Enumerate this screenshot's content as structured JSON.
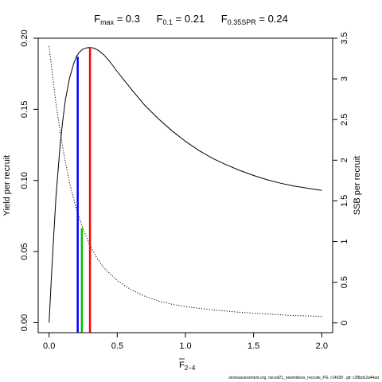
{
  "chart_data": {
    "type": "line",
    "title_parts": [
      {
        "main": "F",
        "sub": "max",
        "value": " = 0.3"
      },
      {
        "main": "F",
        "sub": "0.1",
        "value": " = 0.21"
      },
      {
        "main": "F",
        "sub": "0.35SPR",
        "value": " = 0.24"
      }
    ],
    "xlabel": {
      "main": "F",
      "sub": "2−4",
      "overline": true
    },
    "ylabel_left": "Yield per recruit",
    "ylabel_right": "SSB per recruit",
    "xlim": [
      -0.08,
      2.08
    ],
    "ylim_left": [
      -0.007,
      0.2
    ],
    "ylim_right": [
      -0.12,
      3.5
    ],
    "x_ticks": [
      0,
      0.5,
      1,
      1.5,
      2
    ],
    "x_tick_labels": [
      "0.0",
      "0.5",
      "1.0",
      "1.5",
      "2.0"
    ],
    "y_left_ticks": [
      0,
      0.05,
      0.1,
      0.15,
      0.2
    ],
    "y_left_tick_labels": [
      "0.00",
      "0.05",
      "0.10",
      "0.15",
      "0.20"
    ],
    "y_right_ticks": [
      0,
      0.5,
      1,
      1.5,
      2,
      2.5,
      3,
      3.5
    ],
    "y_right_tick_labels": [
      "0",
      "0.5",
      "1",
      "1.5",
      "2",
      "2.5",
      "3",
      "3.5"
    ],
    "grid": false,
    "series": [
      {
        "axis": "left",
        "style": "solid",
        "color": "#000000",
        "x": [
          0,
          0.02,
          0.05,
          0.08,
          0.1,
          0.12,
          0.15,
          0.18,
          0.2,
          0.22,
          0.25,
          0.28,
          0.3,
          0.33,
          0.36,
          0.4,
          0.45,
          0.5,
          0.6,
          0.7,
          0.8,
          0.9,
          1.0,
          1.1,
          1.2,
          1.3,
          1.4,
          1.5,
          1.6,
          1.7,
          1.8,
          1.9,
          2.0
        ],
        "y": [
          0,
          0.038,
          0.088,
          0.124,
          0.142,
          0.157,
          0.172,
          0.182,
          0.187,
          0.19,
          0.1925,
          0.1933,
          0.1935,
          0.193,
          0.1915,
          0.1885,
          0.183,
          0.1765,
          0.1645,
          0.153,
          0.1435,
          0.135,
          0.1275,
          0.121,
          0.1155,
          0.111,
          0.107,
          0.1035,
          0.1005,
          0.098,
          0.096,
          0.0945,
          0.093
        ]
      },
      {
        "axis": "right",
        "style": "dotted",
        "color": "#000000",
        "x": [
          0,
          0.05,
          0.1,
          0.15,
          0.2,
          0.25,
          0.3,
          0.35,
          0.4,
          0.5,
          0.6,
          0.7,
          0.8,
          0.9,
          1.0,
          1.2,
          1.4,
          1.6,
          1.8,
          2.0
        ],
        "y": [
          3.4,
          2.7,
          2.15,
          1.72,
          1.4,
          1.15,
          0.95,
          0.8,
          0.68,
          0.52,
          0.41,
          0.33,
          0.27,
          0.23,
          0.2,
          0.16,
          0.13,
          0.11,
          0.09,
          0.08
        ]
      }
    ],
    "reference_lines": [
      {
        "x": 0.21,
        "y_top": 0.187,
        "color": "#0000ff"
      },
      {
        "x": 0.24,
        "y_top": 0.0665,
        "color": "#00c000"
      },
      {
        "x": 0.3,
        "y_top": 0.1935,
        "color": "#ff0000"
      }
    ]
  },
  "footer": "stockassessment.org, nscod21_newindices_recruits_PG, r14039 , git: c28bdc2a44ad"
}
